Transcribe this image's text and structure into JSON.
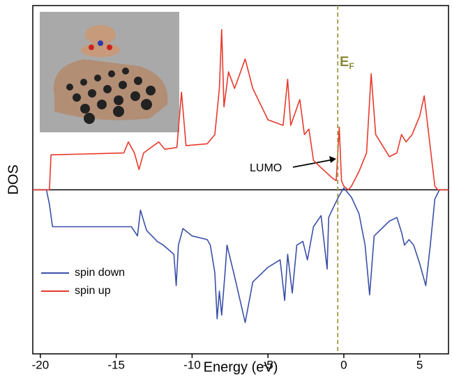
{
  "chart_data": {
    "type": "line",
    "xlabel": "Energy (eV)",
    "ylabel": "DOS",
    "xlim": [
      -20.5,
      6.9
    ],
    "ylim": [
      -0.89,
      1
    ],
    "xticks": [
      -20,
      -15,
      -10,
      -5,
      0,
      5
    ],
    "fermi_level": -0.4,
    "fermi_label": "E",
    "fermi_subscript": "F",
    "annotation": "LUMO",
    "legend": "lower left",
    "series": [
      {
        "name": "spin down",
        "color": "#3a4fa8",
        "x": [
          -20.5,
          -19.6,
          -19.4,
          -19.2,
          -14,
          -13.6,
          -13.4,
          -13,
          -12.3,
          -11.9,
          -11.2,
          -11.05,
          -10.9,
          -10.6,
          -10,
          -9,
          -8.8,
          -8.5,
          -8.35,
          -8.2,
          -8.05,
          -7.8,
          -7.7,
          -7.2,
          -6.5,
          -6,
          -5,
          -4.2,
          -3.9,
          -3.7,
          -3.4,
          -3.1,
          -2.7,
          -2.4,
          -2,
          -1.5,
          -1.1,
          -1,
          -0.6,
          -0.3,
          0,
          0.5,
          1,
          1.4,
          1.7,
          2,
          3,
          3.5,
          3.8,
          4,
          4.3,
          4.6,
          5,
          5.4,
          5.7,
          6,
          6.3,
          6.9
        ],
        "values": [
          0,
          0,
          -0.08,
          -0.2,
          -0.2,
          -0.25,
          -0.11,
          -0.22,
          -0.28,
          -0.3,
          -0.35,
          -0.52,
          -0.3,
          -0.21,
          -0.25,
          -0.27,
          -0.3,
          -0.45,
          -0.7,
          -0.55,
          -0.68,
          -0.42,
          -0.3,
          -0.47,
          -0.72,
          -0.5,
          -0.42,
          -0.38,
          -0.6,
          -0.35,
          -0.56,
          -0.3,
          -0.28,
          -0.38,
          -0.2,
          -0.14,
          -0.43,
          -0.15,
          -0.08,
          -0.03,
          0.01,
          -0.04,
          -0.13,
          -0.3,
          -0.57,
          -0.25,
          -0.17,
          -0.15,
          -0.23,
          -0.3,
          -0.27,
          -0.3,
          -0.4,
          -0.52,
          -0.3,
          -0.05,
          0,
          0
        ]
      },
      {
        "name": "spin up",
        "color": "#e8392b",
        "x": [
          -20.5,
          -19.4,
          -19.3,
          -14.5,
          -14.2,
          -13.8,
          -13.5,
          -13.2,
          -12.2,
          -11.8,
          -11,
          -10.7,
          -10.4,
          -9,
          -8.5,
          -8.2,
          -8.05,
          -7.9,
          -7.6,
          -7.2,
          -6.5,
          -6,
          -5,
          -4,
          -3.7,
          -3.5,
          -2.9,
          -2.6,
          -2.3,
          -2,
          -1.5,
          -0.7,
          -0.5,
          -0.3,
          -0.15,
          0,
          0.3,
          0.5,
          1,
          1.5,
          1.8,
          2.1,
          3,
          3.5,
          3.8,
          4.1,
          4.5,
          5,
          5.3,
          5.6,
          6,
          6.2,
          6.9
        ],
        "values": [
          0,
          0,
          0.19,
          0.2,
          0.26,
          0.2,
          0.11,
          0.2,
          0.26,
          0.22,
          0.23,
          0.53,
          0.24,
          0.25,
          0.3,
          0.55,
          0.87,
          0.45,
          0.64,
          0.55,
          0.71,
          0.55,
          0.38,
          0.35,
          0.6,
          0.35,
          0.49,
          0.3,
          0.33,
          0.16,
          0.12,
          0.06,
          0.05,
          0.34,
          0.05,
          0.02,
          0,
          0.02,
          0.1,
          0.2,
          0.63,
          0.3,
          0.18,
          0.2,
          0.3,
          0.26,
          0.3,
          0.4,
          0.51,
          0.3,
          0.02,
          0,
          0
        ]
      }
    ]
  }
}
